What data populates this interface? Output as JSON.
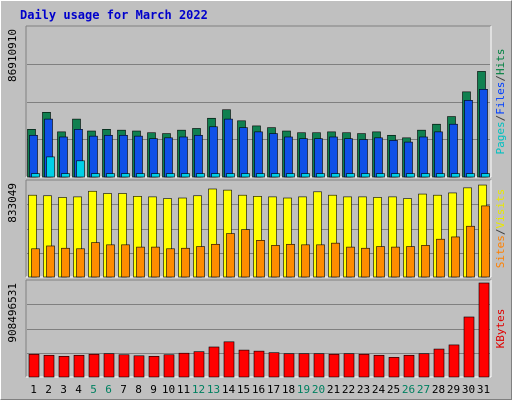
{
  "chart_data": {
    "type": "bar",
    "title": "Daily usage for March 2022",
    "categories": [
      "1",
      "2",
      "3",
      "4",
      "5",
      "6",
      "7",
      "8",
      "9",
      "10",
      "11",
      "12",
      "13",
      "14",
      "15",
      "16",
      "17",
      "18",
      "19",
      "20",
      "21",
      "22",
      "23",
      "24",
      "25",
      "26",
      "27",
      "28",
      "29",
      "30",
      "31"
    ],
    "weekend_days": [
      "5",
      "6",
      "12",
      "13",
      "19",
      "20",
      "26",
      "27"
    ],
    "panels": [
      {
        "id": "hits_panel",
        "ymax": 86910910,
        "ymax_label": "86910910",
        "legend": [
          "Pages",
          "/",
          "Files",
          "/",
          "Hits"
        ],
        "legend_colors": [
          "#00c0c0",
          "#404040",
          "#0040ff",
          "#404040",
          "#008040"
        ],
        "series": [
          {
            "name": "Hits",
            "color": "#108050",
            "values": [
              28000000,
              38000000,
              26500000,
              34000000,
              27000000,
              28000000,
              27500000,
              27000000,
              26000000,
              25500000,
              27500000,
              28500000,
              34500000,
              39500000,
              33000000,
              30000000,
              29000000,
              27000000,
              26000000,
              26000000,
              26500000,
              26000000,
              25500000,
              26500000,
              24500000,
              23000000,
              27500000,
              31000000,
              35500000,
              50000000,
              62000000
            ]
          },
          {
            "name": "Files",
            "color": "#1050e8",
            "values": [
              24500000,
              34000000,
              23500000,
              28000000,
              24000000,
              24500000,
              24500000,
              24000000,
              22500000,
              23000000,
              23500000,
              24500000,
              29500000,
              34000000,
              29000000,
              26500000,
              25500000,
              23500000,
              22500000,
              22500000,
              23500000,
              22500000,
              22000000,
              23000000,
              21500000,
              20500000,
              23500000,
              26500000,
              31000000,
              45000000,
              51500000
            ]
          },
          {
            "name": "Pages",
            "color": "#00d0e8",
            "values": [
              2000000,
              2000000,
              2000000,
              2000000,
              2000000,
              2000000,
              2000000,
              2000000,
              2000000,
              2000000,
              2000000,
              2000000,
              2000000,
              2000000,
              2000000,
              2000000,
              2000000,
              2000000,
              2000000,
              2000000,
              2000000,
              2000000,
              2000000,
              2000000,
              2000000,
              2000000,
              2000000,
              2000000,
              2000000,
              2000000,
              2000000
            ]
          }
        ],
        "extra_pages": {
          "2": 11800000,
          "4": 9500000
        }
      },
      {
        "id": "visits_panel",
        "ymax": 833049,
        "ymax_label": "833049",
        "legend": [
          "Sites",
          "/",
          "Visits"
        ],
        "legend_colors": [
          "#ff8000",
          "#404040",
          "#e8e800"
        ],
        "series": [
          {
            "name": "Visits",
            "color": "#ffff00",
            "values": [
              725000,
              720000,
              705000,
              710000,
              760000,
              740000,
              740000,
              715000,
              710000,
              695000,
              700000,
              720000,
              780000,
              770000,
              725000,
              715000,
              710000,
              700000,
              710000,
              755000,
              725000,
              710000,
              710000,
              705000,
              710000,
              695000,
              735000,
              725000,
              745000,
              790000,
              815000
            ]
          },
          {
            "name": "Sites",
            "color": "#ff8c00",
            "values": [
              250000,
              275000,
              255000,
              250000,
              305000,
              285000,
              285000,
              265000,
              265000,
              250000,
              255000,
              270000,
              290000,
              385000,
              420000,
              325000,
              280000,
              290000,
              285000,
              285000,
              300000,
              265000,
              255000,
              270000,
              265000,
              270000,
              280000,
              335000,
              355000,
              450000,
              630000
            ]
          }
        ]
      },
      {
        "id": "kbytes_panel",
        "ymax": 908496531,
        "ymax_label": "908496531",
        "legend": [
          "KBytes"
        ],
        "legend_colors": [
          "#e00000"
        ],
        "series": [
          {
            "name": "KBytes",
            "color": "#ff0000",
            "values": [
              220000000,
              210000000,
              200000000,
              210000000,
              220000000,
              225000000,
              215000000,
              205000000,
              200000000,
              215000000,
              230000000,
              245000000,
              290000000,
              340000000,
              260000000,
              250000000,
              235000000,
              225000000,
              225000000,
              225000000,
              220000000,
              225000000,
              220000000,
              210000000,
              190000000,
              210000000,
              225000000,
              270000000,
              310000000,
              580000000,
              908496531
            ]
          }
        ]
      }
    ]
  }
}
